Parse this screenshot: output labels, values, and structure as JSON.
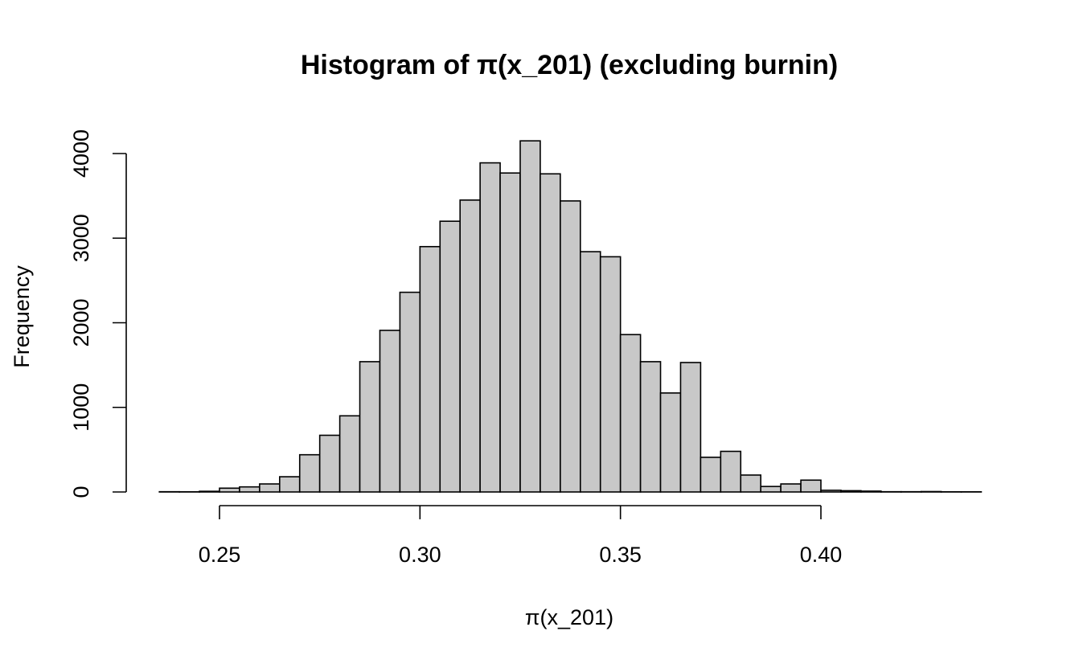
{
  "chart_data": {
    "type": "bar",
    "title": "Histogram of π(x_201) (excluding burnin)",
    "xlabel": "π(x_201)",
    "ylabel": "Frequency",
    "xlim": [
      0.235,
      0.44
    ],
    "ylim": [
      0,
      4200
    ],
    "grid": false,
    "bin_width": 0.005,
    "bins_start": [
      0.235,
      0.24,
      0.245,
      0.25,
      0.255,
      0.26,
      0.265,
      0.27,
      0.275,
      0.28,
      0.285,
      0.29,
      0.295,
      0.3,
      0.305,
      0.31,
      0.315,
      0.32,
      0.325,
      0.33,
      0.335,
      0.34,
      0.345,
      0.35,
      0.355,
      0.36,
      0.365,
      0.37,
      0.375,
      0.38,
      0.385,
      0.39,
      0.395,
      0.4,
      0.405,
      0.41,
      0.415,
      0.42,
      0.425,
      0.43,
      0.435
    ],
    "values": [
      3,
      2,
      8,
      45,
      60,
      95,
      180,
      440,
      670,
      900,
      1540,
      1910,
      2360,
      2900,
      3200,
      3450,
      3890,
      3770,
      4150,
      3760,
      3440,
      2840,
      2780,
      1860,
      1540,
      1170,
      1530,
      410,
      480,
      200,
      65,
      95,
      140,
      20,
      15,
      10,
      3,
      3,
      5,
      2,
      2
    ],
    "x_ticks": [
      "0.25",
      "0.30",
      "0.35",
      "0.40"
    ],
    "y_ticks": [
      "0",
      "1000",
      "2000",
      "3000",
      "4000"
    ]
  }
}
